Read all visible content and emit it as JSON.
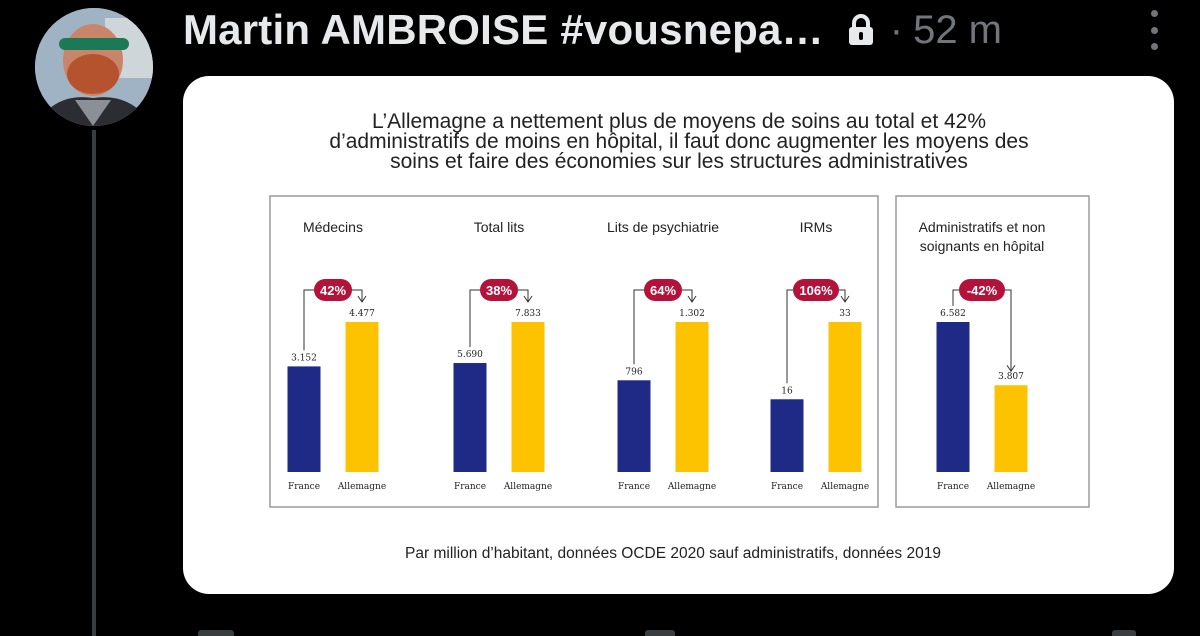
{
  "post": {
    "author": "Martin AMBROISE #vousnepa…",
    "separator": "·",
    "time": "52 m",
    "lock_icon": "lock-icon",
    "more_icon": "more-vertical-icon",
    "avatar": "user-avatar"
  },
  "image": {
    "title_lines": [
      "L’Allemagne a nettement plus de moyens de soins au total et 42%",
      "d’administratifs de moins en hôpital, il faut donc augmenter les moyens des",
      "soins et faire des économies sur les structures administratives"
    ],
    "footnote": "Par million d’habitant, données OCDE 2020 sauf administratifs, données 2019",
    "colors": {
      "france": "#1f2a86",
      "allemagne": "#fdc300",
      "badge": "#b3133a"
    }
  },
  "chart_data": [
    {
      "type": "bar",
      "title": "Médecins",
      "categories": [
        "France",
        "Allemagne"
      ],
      "values": [
        3152,
        4477
      ],
      "value_labels": [
        "3.152",
        "4.477"
      ],
      "badge": "42%"
    },
    {
      "type": "bar",
      "title": "Total lits",
      "categories": [
        "France",
        "Allemagne"
      ],
      "values": [
        5690,
        7833
      ],
      "value_labels": [
        "5.690",
        "7.833"
      ],
      "badge": "38%"
    },
    {
      "type": "bar",
      "title": "Lits de psychiatrie",
      "categories": [
        "France",
        "Allemagne"
      ],
      "values": [
        796,
        1302
      ],
      "value_labels": [
        "796",
        "1.302"
      ],
      "badge": "64%"
    },
    {
      "type": "bar",
      "title": "IRMs",
      "categories": [
        "France",
        "Allemagne"
      ],
      "values": [
        16,
        33
      ],
      "value_labels": [
        "16",
        "33"
      ],
      "badge": "106%"
    },
    {
      "type": "bar",
      "title": "Administratifs et non soignants en hôpital",
      "title_lines": [
        "Administratifs et non",
        "soignants en hôpital"
      ],
      "categories": [
        "France",
        "Allemagne"
      ],
      "values": [
        6582,
        3807
      ],
      "value_labels": [
        "6.582",
        "3.807"
      ],
      "badge": "-42%"
    }
  ]
}
